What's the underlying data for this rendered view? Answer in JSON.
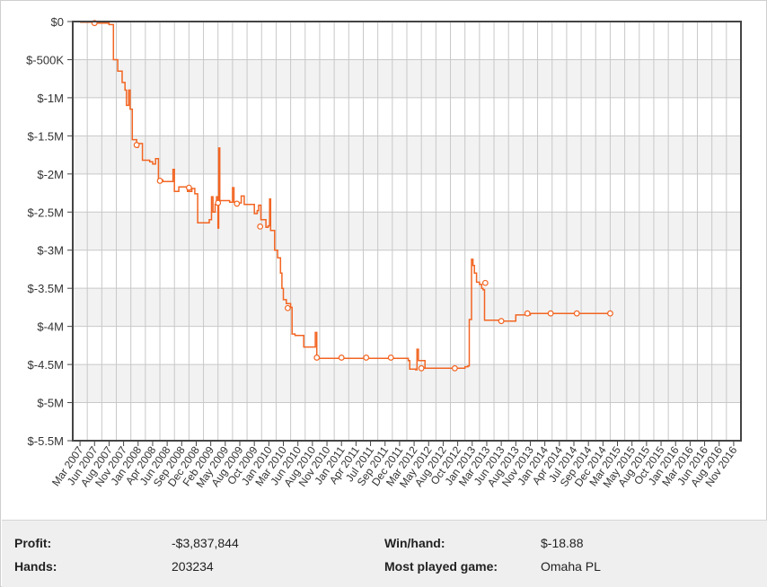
{
  "colors": {
    "line": "#f26522",
    "marker_fill": "#ffffff",
    "plot_band": "#f2f2f2",
    "grid": "#c8c8c8",
    "axis": "#444444"
  },
  "stats": {
    "profit_label": "Profit:",
    "profit_value": "-$3,837,844",
    "winhand_label": "Win/hand:",
    "winhand_value": "$-18.88",
    "hands_label": "Hands:",
    "hands_value": "203234",
    "game_label": "Most played game:",
    "game_value": "Omaha PL"
  },
  "chart_data": {
    "type": "line",
    "title": "",
    "xlabel": "",
    "ylabel": "",
    "ylim": [
      -5500000,
      0
    ],
    "grid": true,
    "legend": "none",
    "y_tick_labels": [
      "$0",
      "$-500K",
      "$-1M",
      "$-1.5M",
      "$-2M",
      "$-2.5M",
      "$-3M",
      "$-3.5M",
      "$-4M",
      "$-4.5M",
      "$-5M",
      "$-5.5M"
    ],
    "y_tick_values": [
      0,
      -500000,
      -1000000,
      -1500000,
      -2000000,
      -2500000,
      -3000000,
      -3500000,
      -4000000,
      -4500000,
      -5000000,
      -5500000
    ],
    "x_tick_labels": [
      "Mar 2007",
      "Jun 2007",
      "Aug 2007",
      "Nov 2007",
      "Jan 2008",
      "Apr 2008",
      "Jun 2008",
      "Sep 2008",
      "Dec 2008",
      "Feb 2009",
      "May 2009",
      "Aug 2009",
      "Oct 2009",
      "Jan 2010",
      "Mar 2010",
      "Jun 2010",
      "Aug 2010",
      "Nov 2010",
      "Jan 2011",
      "Apr 2011",
      "Jul 2011",
      "Sep 2011",
      "Dec 2011",
      "Mar 2012",
      "May 2012",
      "Aug 2012",
      "Oct 2012",
      "Jan 2013",
      "Mar 2013",
      "Jun 2013",
      "Aug 2013",
      "Nov 2013",
      "Jan 2014",
      "Apr 2014",
      "Jul 2014",
      "Sep 2014",
      "Dec 2014",
      "Mar 2015",
      "May 2015",
      "Aug 2015",
      "Oct 2015",
      "Jan 2016",
      "Mar 2016",
      "Jun 2016",
      "Aug 2016",
      "Nov 2016"
    ],
    "series": [
      {
        "values": [
          [
            0,
            -10000
          ],
          [
            1,
            -20000
          ],
          [
            1.6,
            -20000
          ],
          [
            2,
            -40000
          ],
          [
            2.3,
            -500000
          ],
          [
            2.6,
            -650000
          ],
          [
            2.9,
            -800000
          ],
          [
            3.1,
            -900000
          ],
          [
            3.2,
            -1100000
          ],
          [
            3.35,
            -900000
          ],
          [
            3.45,
            -1150000
          ],
          [
            3.6,
            -1550000
          ],
          [
            3.8,
            -1550000
          ],
          [
            3.9,
            -1650000
          ],
          [
            4.0,
            -1600000
          ],
          [
            4.3,
            -1820000
          ],
          [
            4.8,
            -1840000
          ],
          [
            5.0,
            -1870000
          ],
          [
            5.2,
            -1800000
          ],
          [
            5.4,
            -2080000
          ],
          [
            5.7,
            -2100000
          ],
          [
            6.2,
            -2100000
          ],
          [
            6.4,
            -1940000
          ],
          [
            6.5,
            -2230000
          ],
          [
            6.8,
            -2170000
          ],
          [
            7.2,
            -2170000
          ],
          [
            7.4,
            -2230000
          ],
          [
            7.7,
            -2190000
          ],
          [
            7.9,
            -2260000
          ],
          [
            8.1,
            -2640000
          ],
          [
            8.7,
            -2640000
          ],
          [
            8.9,
            -2600000
          ],
          [
            9.05,
            -2300000
          ],
          [
            9.15,
            -2500000
          ],
          [
            9.3,
            -2400000
          ],
          [
            9.4,
            -2300000
          ],
          [
            9.5,
            -2710000
          ],
          [
            9.55,
            -1660000
          ],
          [
            9.62,
            -2350000
          ],
          [
            10.0,
            -2350000
          ],
          [
            10.3,
            -2370000
          ],
          [
            10.5,
            -2180000
          ],
          [
            10.6,
            -2370000
          ],
          [
            10.9,
            -2380000
          ],
          [
            11.1,
            -2290000
          ],
          [
            11.3,
            -2400000
          ],
          [
            11.9,
            -2400000
          ],
          [
            12.0,
            -2520000
          ],
          [
            12.2,
            -2480000
          ],
          [
            12.3,
            -2410000
          ],
          [
            12.45,
            -2600000
          ],
          [
            12.8,
            -2700000
          ],
          [
            12.95,
            -2680000
          ],
          [
            13.05,
            -2330000
          ],
          [
            13.12,
            -2740000
          ],
          [
            13.4,
            -3000000
          ],
          [
            13.6,
            -3100000
          ],
          [
            13.8,
            -3300000
          ],
          [
            13.9,
            -3500000
          ],
          [
            14.0,
            -3650000
          ],
          [
            14.2,
            -3700000
          ],
          [
            14.5,
            -3750000
          ],
          [
            14.6,
            -4100000
          ],
          [
            14.8,
            -4120000
          ],
          [
            15.2,
            -4120000
          ],
          [
            15.4,
            -4270000
          ],
          [
            16.1,
            -4270000
          ],
          [
            16.2,
            -4080000
          ],
          [
            16.3,
            -4420000
          ],
          [
            17.0,
            -4420000
          ],
          [
            18.0,
            -4420000
          ],
          [
            19.0,
            -4420000
          ],
          [
            20.0,
            -4420000
          ],
          [
            21.0,
            -4420000
          ],
          [
            22.0,
            -4420000
          ],
          [
            22.5,
            -4420000
          ],
          [
            22.6,
            -4450000
          ],
          [
            22.7,
            -4560000
          ],
          [
            23.1,
            -4570000
          ],
          [
            23.2,
            -4300000
          ],
          [
            23.3,
            -4450000
          ],
          [
            23.6,
            -4450000
          ],
          [
            23.75,
            -4550000
          ],
          [
            24.0,
            -4550000
          ],
          [
            25.0,
            -4550000
          ],
          [
            26.0,
            -4550000
          ],
          [
            26.3,
            -4550000
          ],
          [
            26.5,
            -4530000
          ],
          [
            26.7,
            -4520000
          ],
          [
            26.8,
            -3910000
          ],
          [
            26.95,
            -3120000
          ],
          [
            27.05,
            -3200000
          ],
          [
            27.15,
            -3300000
          ],
          [
            27.3,
            -3420000
          ],
          [
            27.5,
            -3450000
          ],
          [
            27.65,
            -3500000
          ],
          [
            27.75,
            -3520000
          ],
          [
            27.85,
            -3920000
          ],
          [
            28.5,
            -3920000
          ],
          [
            29.0,
            -3930000
          ],
          [
            29.9,
            -3930000
          ],
          [
            30.0,
            -3850000
          ],
          [
            31.0,
            -3830000
          ],
          [
            32.0,
            -3830000
          ],
          [
            33.0,
            -3830000
          ],
          [
            34.0,
            -3830000
          ],
          [
            35.0,
            -3830000
          ],
          [
            36.0,
            -3830000
          ],
          [
            36.6,
            -3830000
          ]
        ],
        "markers": [
          [
            1,
            -20000
          ],
          [
            3.9,
            -1620000
          ],
          [
            5.5,
            -2090000
          ],
          [
            7.5,
            -2180000
          ],
          [
            9.5,
            -2380000
          ],
          [
            10.8,
            -2390000
          ],
          [
            12.4,
            -2690000
          ],
          [
            14.3,
            -3760000
          ],
          [
            16.3,
            -4410000
          ],
          [
            18.0,
            -4410000
          ],
          [
            19.7,
            -4410000
          ],
          [
            21.4,
            -4410000
          ],
          [
            23.5,
            -4550000
          ],
          [
            25.8,
            -4550000
          ],
          [
            27.9,
            -3430000
          ],
          [
            29.0,
            -3930000
          ],
          [
            30.8,
            -3830000
          ],
          [
            32.4,
            -3830000
          ],
          [
            34.2,
            -3830000
          ],
          [
            36.5,
            -3830000
          ]
        ]
      }
    ]
  }
}
